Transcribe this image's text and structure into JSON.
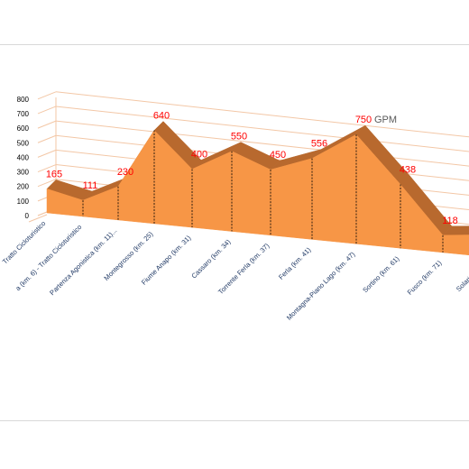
{
  "chart_data": {
    "type": "area",
    "title": "",
    "xlabel": "",
    "ylabel": "",
    "ylim": [
      0,
      800
    ],
    "yticks": [
      0,
      100,
      200,
      300,
      400,
      500,
      600,
      700,
      800
    ],
    "grid": true,
    "legend": "none",
    "three_d": true,
    "categories": [
      "Tratto Cicloturistico",
      "a (km. 6) - Tratto Cicloturistico",
      "Partenza Agonistica (km. 11)...",
      "Montegrosso (km. 25)",
      "Fiume Anapo (km. 31)",
      "Cassaro (km. 34)",
      "Torrente Ferla (km. 37)",
      "Ferla (km. 41)",
      "Montagna-Piano Lago (km. 47)",
      "Sortino (km. 61)",
      "Fusco (km. 71)",
      "Solarino (..."
    ],
    "series": [
      {
        "values": [
          165,
          111,
          230,
          640,
          400,
          550,
          450,
          556,
          750,
          438,
          118,
          150
        ]
      }
    ],
    "data_labels": [
      "165",
      "111",
      "230",
      "640",
      "400",
      "550",
      "450",
      "556",
      "750",
      "438",
      "118",
      ""
    ],
    "annotations": [
      {
        "text": "GPM",
        "attached_to_index": 8
      }
    ]
  },
  "colors": {
    "area_fill": "#f79646",
    "area_top_edge": "#b8692e",
    "data_label": "#ff0000",
    "annotation": "#595959",
    "grid": "#f3c7a6",
    "axis_text": "#000000",
    "category_text": "#1f3864"
  }
}
